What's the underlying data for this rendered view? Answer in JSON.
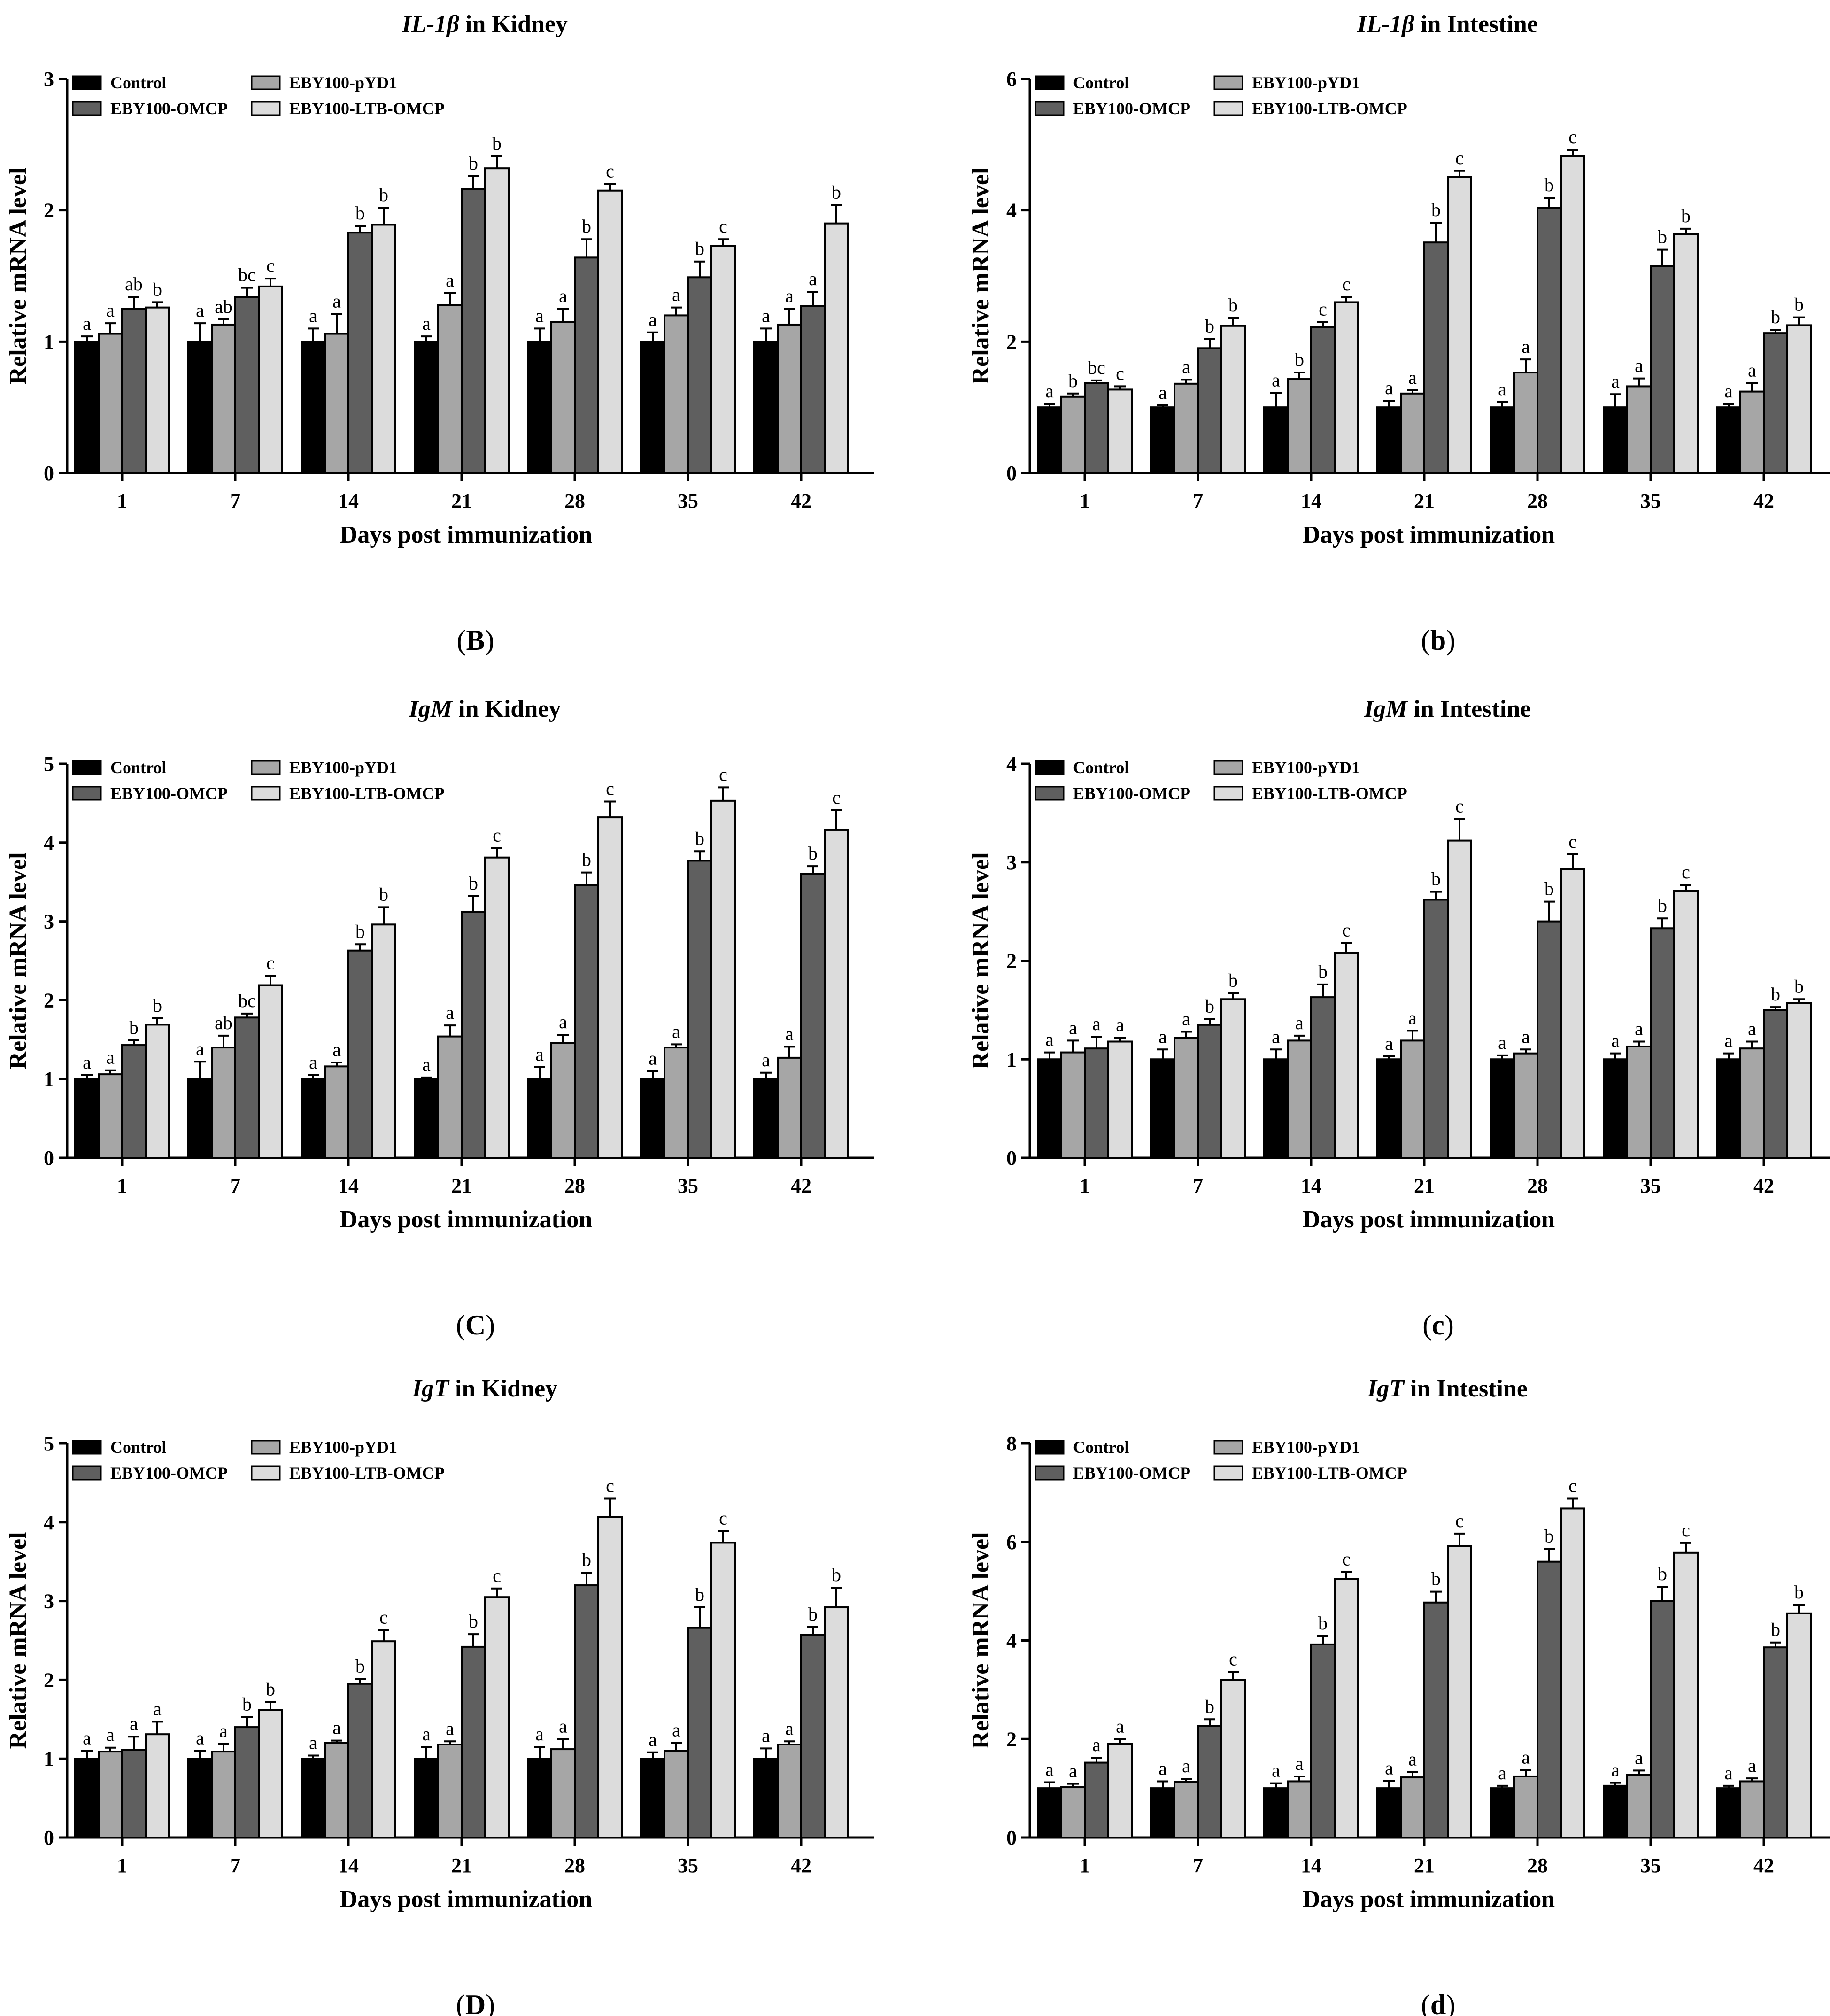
{
  "colors": {
    "Control": "#000000",
    "EBY100-pYD1": "#a6a6a6",
    "EBY100-OMCP": "#5f5f5f",
    "EBY100-LTB-OMCP": "#dcdcdc"
  },
  "chart_data": [
    {
      "id": "B",
      "panel_label": "B",
      "type": "bar",
      "title_italic": "IL-1β",
      "title_rest": " in Kidney",
      "xlabel": "Days post immunization",
      "ylabel": "Relative mRNA level",
      "ylim": [
        0,
        3
      ],
      "yticks": [
        "0",
        "1",
        "2",
        "3"
      ],
      "categories": [
        "1",
        "7",
        "14",
        "21",
        "28",
        "35",
        "42"
      ],
      "legend": [
        "Control",
        "EBY100-pYD1",
        "EBY100-OMCP",
        "EBY100-LTB-OMCP"
      ],
      "series": [
        {
          "name": "Control",
          "values": [
            1.0,
            1.0,
            1.0,
            1.0,
            1.0,
            1.0,
            1.0
          ],
          "errors": [
            0.04,
            0.14,
            0.1,
            0.04,
            0.1,
            0.07,
            0.1
          ],
          "labels": [
            "a",
            "a",
            "a",
            "a",
            "a",
            "a",
            "a"
          ]
        },
        {
          "name": "EBY100-pYD1",
          "values": [
            1.06,
            1.13,
            1.06,
            1.28,
            1.15,
            1.2,
            1.13
          ],
          "errors": [
            0.08,
            0.04,
            0.15,
            0.09,
            0.1,
            0.06,
            0.12
          ],
          "labels": [
            "a",
            "ab",
            "a",
            "a",
            "a",
            "a",
            "a"
          ]
        },
        {
          "name": "EBY100-OMCP",
          "values": [
            1.25,
            1.34,
            1.83,
            2.16,
            1.64,
            1.49,
            1.27
          ],
          "errors": [
            0.09,
            0.07,
            0.05,
            0.1,
            0.14,
            0.12,
            0.11
          ],
          "labels": [
            "ab",
            "bc",
            "b",
            "b",
            "b",
            "b",
            "a"
          ]
        },
        {
          "name": "EBY100-LTB-OMCP",
          "values": [
            1.26,
            1.42,
            1.89,
            2.32,
            2.15,
            1.73,
            1.9
          ],
          "errors": [
            0.04,
            0.06,
            0.13,
            0.09,
            0.05,
            0.05,
            0.14
          ],
          "labels": [
            "b",
            "c",
            "b",
            "b",
            "c",
            "c",
            "b"
          ]
        }
      ]
    },
    {
      "id": "b",
      "panel_label": "b",
      "type": "bar",
      "title_italic": "IL-1β",
      "title_rest": " in Intestine",
      "xlabel": "Days post immunization",
      "ylabel": "Relative mRNA level",
      "ylim": [
        0,
        6
      ],
      "yticks": [
        "0",
        "2",
        "4",
        "6"
      ],
      "categories": [
        "1",
        "7",
        "14",
        "21",
        "28",
        "35",
        "42"
      ],
      "legend": [
        "Control",
        "EBY100-pYD1",
        "EBY100-OMCP",
        "EBY100-LTB-OMCP"
      ],
      "series": [
        {
          "name": "Control",
          "values": [
            1.0,
            1.0,
            1.0,
            1.0,
            1.0,
            1.0,
            1.0
          ],
          "errors": [
            0.05,
            0.03,
            0.22,
            0.1,
            0.08,
            0.2,
            0.05
          ],
          "labels": [
            "a",
            "a",
            "a",
            "a",
            "a",
            "a",
            "a"
          ]
        },
        {
          "name": "EBY100-pYD1",
          "values": [
            1.16,
            1.36,
            1.43,
            1.21,
            1.53,
            1.32,
            1.24
          ],
          "errors": [
            0.05,
            0.06,
            0.1,
            0.05,
            0.2,
            0.12,
            0.13
          ],
          "labels": [
            "b",
            "a",
            "b",
            "a",
            "a",
            "a",
            "a"
          ]
        },
        {
          "name": "EBY100-OMCP",
          "values": [
            1.37,
            1.9,
            2.22,
            3.51,
            4.04,
            3.15,
            2.13
          ],
          "errors": [
            0.04,
            0.14,
            0.08,
            0.3,
            0.15,
            0.25,
            0.05
          ],
          "labels": [
            "bc",
            "b",
            "c",
            "b",
            "b",
            "b",
            "b"
          ]
        },
        {
          "name": "EBY100-LTB-OMCP",
          "values": [
            1.27,
            2.24,
            2.6,
            4.51,
            4.82,
            3.64,
            2.25
          ],
          "errors": [
            0.05,
            0.12,
            0.08,
            0.09,
            0.1,
            0.08,
            0.12
          ],
          "labels": [
            "c",
            "b",
            "c",
            "c",
            "c",
            "b",
            "b"
          ]
        }
      ]
    },
    {
      "id": "C",
      "panel_label": "C",
      "type": "bar",
      "title_italic": "IgM",
      "title_rest": " in Kidney",
      "xlabel": "Days post immunization",
      "ylabel": "Relative mRNA level",
      "ylim": [
        0,
        5
      ],
      "yticks": [
        "0",
        "1",
        "2",
        "3",
        "4",
        "5"
      ],
      "categories": [
        "1",
        "7",
        "14",
        "21",
        "28",
        "35",
        "42"
      ],
      "legend": [
        "Control",
        "EBY100-pYD1",
        "EBY100-OMCP",
        "EBY100-LTB-OMCP"
      ],
      "series": [
        {
          "name": "Control",
          "values": [
            1.0,
            1.0,
            1.0,
            1.0,
            1.0,
            1.0,
            1.0
          ],
          "errors": [
            0.05,
            0.22,
            0.05,
            0.02,
            0.15,
            0.1,
            0.08
          ],
          "labels": [
            "a",
            "a",
            "a",
            "a",
            "a",
            "a",
            "a"
          ]
        },
        {
          "name": "EBY100-pYD1",
          "values": [
            1.06,
            1.4,
            1.16,
            1.54,
            1.46,
            1.4,
            1.27
          ],
          "errors": [
            0.05,
            0.15,
            0.05,
            0.14,
            0.1,
            0.04,
            0.14
          ],
          "labels": [
            "a",
            "ab",
            "a",
            "a",
            "a",
            "a",
            "a"
          ]
        },
        {
          "name": "EBY100-OMCP",
          "values": [
            1.43,
            1.78,
            2.63,
            3.12,
            3.46,
            3.77,
            3.6
          ],
          "errors": [
            0.06,
            0.05,
            0.08,
            0.2,
            0.16,
            0.12,
            0.1
          ],
          "labels": [
            "b",
            "bc",
            "b",
            "b",
            "b",
            "b",
            "b"
          ]
        },
        {
          "name": "EBY100-LTB-OMCP",
          "values": [
            1.69,
            2.19,
            2.96,
            3.81,
            4.32,
            4.53,
            4.16
          ],
          "errors": [
            0.08,
            0.12,
            0.22,
            0.12,
            0.2,
            0.17,
            0.25
          ],
          "labels": [
            "b",
            "c",
            "b",
            "c",
            "c",
            "c",
            "c"
          ]
        }
      ]
    },
    {
      "id": "c",
      "panel_label": "c",
      "type": "bar",
      "title_italic": "IgM",
      "title_rest": " in Intestine",
      "xlabel": "Days post immunization",
      "ylabel": "Relative mRNA level",
      "ylim": [
        0,
        4
      ],
      "yticks": [
        "0",
        "1",
        "2",
        "3",
        "4"
      ],
      "categories": [
        "1",
        "7",
        "14",
        "21",
        "28",
        "35",
        "42"
      ],
      "legend": [
        "Control",
        "EBY100-pYD1",
        "EBY100-OMCP",
        "EBY100-LTB-OMCP"
      ],
      "series": [
        {
          "name": "Control",
          "values": [
            1.0,
            1.0,
            1.0,
            1.0,
            1.0,
            1.0,
            1.0
          ],
          "errors": [
            0.07,
            0.1,
            0.1,
            0.03,
            0.04,
            0.06,
            0.06
          ],
          "labels": [
            "a",
            "a",
            "a",
            "a",
            "a",
            "a",
            "a"
          ]
        },
        {
          "name": "EBY100-pYD1",
          "values": [
            1.07,
            1.22,
            1.19,
            1.19,
            1.06,
            1.13,
            1.11
          ],
          "errors": [
            0.12,
            0.06,
            0.05,
            0.1,
            0.04,
            0.05,
            0.07
          ],
          "labels": [
            "a",
            "a",
            "a",
            "a",
            "a",
            "a",
            "a"
          ]
        },
        {
          "name": "EBY100-OMCP",
          "values": [
            1.11,
            1.35,
            1.63,
            2.62,
            2.4,
            2.33,
            1.5
          ],
          "errors": [
            0.12,
            0.06,
            0.13,
            0.08,
            0.2,
            0.1,
            0.03
          ],
          "labels": [
            "a",
            "b",
            "b",
            "b",
            "b",
            "b",
            "b"
          ]
        },
        {
          "name": "EBY100-LTB-OMCP",
          "values": [
            1.18,
            1.61,
            2.08,
            3.22,
            2.93,
            2.71,
            1.57
          ],
          "errors": [
            0.04,
            0.06,
            0.1,
            0.22,
            0.15,
            0.06,
            0.04
          ],
          "labels": [
            "a",
            "b",
            "c",
            "c",
            "c",
            "c",
            "b"
          ]
        }
      ]
    },
    {
      "id": "D",
      "panel_label": "D",
      "type": "bar",
      "title_italic": "IgT",
      "title_rest": " in Kidney",
      "xlabel": "Days post immunization",
      "ylabel": "Relative mRNA level",
      "ylim": [
        0,
        5
      ],
      "yticks": [
        "0",
        "1",
        "2",
        "3",
        "4",
        "5"
      ],
      "categories": [
        "1",
        "7",
        "14",
        "21",
        "28",
        "35",
        "42"
      ],
      "legend": [
        "Control",
        "EBY100-pYD1",
        "EBY100-OMCP",
        "EBY100-LTB-OMCP"
      ],
      "series": [
        {
          "name": "Control",
          "values": [
            1.0,
            1.0,
            1.0,
            1.0,
            1.0,
            1.0,
            1.0
          ],
          "errors": [
            0.1,
            0.1,
            0.04,
            0.15,
            0.15,
            0.08,
            0.13
          ],
          "labels": [
            "a",
            "a",
            "a",
            "a",
            "a",
            "a",
            "a"
          ]
        },
        {
          "name": "EBY100-pYD1",
          "values": [
            1.09,
            1.09,
            1.2,
            1.18,
            1.12,
            1.1,
            1.18
          ],
          "errors": [
            0.05,
            0.1,
            0.03,
            0.04,
            0.13,
            0.1,
            0.04
          ],
          "labels": [
            "a",
            "a",
            "a",
            "a",
            "a",
            "a",
            "a"
          ]
        },
        {
          "name": "EBY100-OMCP",
          "values": [
            1.11,
            1.4,
            1.95,
            2.42,
            3.2,
            2.66,
            2.57
          ],
          "errors": [
            0.17,
            0.13,
            0.06,
            0.16,
            0.16,
            0.26,
            0.1
          ],
          "labels": [
            "a",
            "b",
            "b",
            "b",
            "b",
            "b",
            "b"
          ]
        },
        {
          "name": "EBY100-LTB-OMCP",
          "values": [
            1.31,
            1.62,
            2.49,
            3.05,
            4.07,
            3.74,
            2.92
          ],
          "errors": [
            0.16,
            0.1,
            0.14,
            0.11,
            0.23,
            0.15,
            0.25
          ],
          "labels": [
            "a",
            "b",
            "c",
            "c",
            "c",
            "c",
            "b"
          ]
        }
      ]
    },
    {
      "id": "d",
      "panel_label": "d",
      "type": "bar",
      "title_italic": "IgT",
      "title_rest": " in Intestine",
      "xlabel": "Days post immunization",
      "ylabel": "Relative mRNA level",
      "ylim": [
        0,
        8
      ],
      "yticks": [
        "0",
        "2",
        "4",
        "6",
        "8"
      ],
      "categories": [
        "1",
        "7",
        "14",
        "21",
        "28",
        "35",
        "42"
      ],
      "legend": [
        "Control",
        "EBY100-pYD1",
        "EBY100-OMCP",
        "EBY100-LTB-OMCP"
      ],
      "series": [
        {
          "name": "Control",
          "values": [
            1.0,
            1.0,
            1.0,
            1.0,
            1.0,
            1.05,
            1.0
          ],
          "errors": [
            0.12,
            0.14,
            0.1,
            0.15,
            0.05,
            0.06,
            0.05
          ],
          "labels": [
            "a",
            "a",
            "a",
            "a",
            "a",
            "a",
            "a"
          ]
        },
        {
          "name": "EBY100-pYD1",
          "values": [
            1.02,
            1.13,
            1.14,
            1.22,
            1.24,
            1.27,
            1.14
          ],
          "errors": [
            0.07,
            0.06,
            0.1,
            0.11,
            0.13,
            0.09,
            0.06
          ],
          "labels": [
            "a",
            "a",
            "a",
            "a",
            "a",
            "a",
            "a"
          ]
        },
        {
          "name": "EBY100-OMCP",
          "values": [
            1.52,
            2.26,
            3.92,
            4.77,
            5.6,
            4.8,
            3.86
          ],
          "errors": [
            0.1,
            0.14,
            0.17,
            0.22,
            0.26,
            0.29,
            0.1
          ],
          "labels": [
            "a",
            "b",
            "b",
            "b",
            "b",
            "b",
            "b"
          ]
        },
        {
          "name": "EBY100-LTB-OMCP",
          "values": [
            1.9,
            3.2,
            5.25,
            5.92,
            6.68,
            5.78,
            4.55
          ],
          "errors": [
            0.1,
            0.16,
            0.14,
            0.25,
            0.2,
            0.2,
            0.17
          ],
          "labels": [
            "a",
            "c",
            "c",
            "c",
            "c",
            "c",
            "b"
          ]
        }
      ]
    }
  ]
}
